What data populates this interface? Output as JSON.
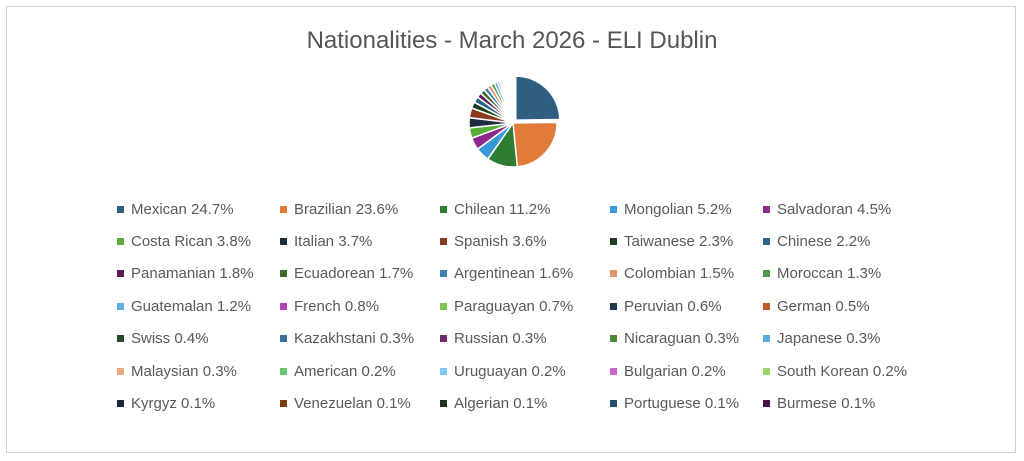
{
  "chart_data": {
    "type": "pie",
    "title": "Nationalities - March 2026 - ELI Dublin",
    "legend_position": "bottom",
    "slices": [
      {
        "label": "Mexican",
        "value": 24.7,
        "display": "24.7%",
        "color": "#2E5E80"
      },
      {
        "label": "Brazilian",
        "value": 23.6,
        "display": "23.6%",
        "color": "#E07B39"
      },
      {
        "label": "Chilean",
        "value": 11.2,
        "display": "11.2%",
        "color": "#2E7D32"
      },
      {
        "label": "Mongolian",
        "value": 5.2,
        "display": "5.2%",
        "color": "#3A9AD9"
      },
      {
        "label": "Salvadoran",
        "value": 4.5,
        "display": "4.5%",
        "color": "#8E2A8E"
      },
      {
        "label": "Costa Rican",
        "value": 3.8,
        "display": "3.8%",
        "color": "#5BAE3A"
      },
      {
        "label": "Italian",
        "value": 3.7,
        "display": "3.7%",
        "color": "#1B2E40"
      },
      {
        "label": "Spanish",
        "value": 3.6,
        "display": "3.6%",
        "color": "#8B3A1E"
      },
      {
        "label": "Taiwanese",
        "value": 2.3,
        "display": "2.3%",
        "color": "#1E3F1E"
      },
      {
        "label": "Chinese",
        "value": 2.2,
        "display": "2.2%",
        "color": "#2F6688"
      },
      {
        "label": "Panamanian",
        "value": 1.8,
        "display": "1.8%",
        "color": "#5A1A5A"
      },
      {
        "label": "Ecuadorean",
        "value": 1.7,
        "display": "1.7%",
        "color": "#3F6B2A"
      },
      {
        "label": "Argentinean",
        "value": 1.6,
        "display": "1.6%",
        "color": "#3C82B0"
      },
      {
        "label": "Colombian",
        "value": 1.5,
        "display": "1.5%",
        "color": "#E0956A"
      },
      {
        "label": "Moroccan",
        "value": 1.3,
        "display": "1.3%",
        "color": "#4C9A4C"
      },
      {
        "label": "Guatemalan",
        "value": 1.2,
        "display": "1.2%",
        "color": "#5AB0E0"
      },
      {
        "label": "French",
        "value": 0.8,
        "display": "0.8%",
        "color": "#B245B2"
      },
      {
        "label": "Paraguayan",
        "value": 0.7,
        "display": "0.7%",
        "color": "#7CC456"
      },
      {
        "label": "Peruvian",
        "value": 0.6,
        "display": "0.6%",
        "color": "#1F3A4A"
      },
      {
        "label": "German",
        "value": 0.5,
        "display": "0.5%",
        "color": "#C05A2A"
      },
      {
        "label": "Swiss",
        "value": 0.4,
        "display": "0.4%",
        "color": "#2A4A2A"
      },
      {
        "label": "Kazakhstani",
        "value": 0.3,
        "display": "0.3%",
        "color": "#3A7098"
      },
      {
        "label": "Russian",
        "value": 0.3,
        "display": "0.3%",
        "color": "#6E2A6E"
      },
      {
        "label": "Nicaraguan",
        "value": 0.3,
        "display": "0.3%",
        "color": "#4A8A3A"
      },
      {
        "label": "Japanese",
        "value": 0.3,
        "display": "0.3%",
        "color": "#5AA8D8"
      },
      {
        "label": "Malaysian",
        "value": 0.3,
        "display": "0.3%",
        "color": "#E8A880"
      },
      {
        "label": "American",
        "value": 0.2,
        "display": "0.2%",
        "color": "#6CC46C"
      },
      {
        "label": "Uruguayan",
        "value": 0.2,
        "display": "0.2%",
        "color": "#7EC8EC"
      },
      {
        "label": "Bulgarian",
        "value": 0.2,
        "display": "0.2%",
        "color": "#CC66CC"
      },
      {
        "label": "South Korean",
        "value": 0.2,
        "display": "0.2%",
        "color": "#9AD46A"
      },
      {
        "label": "Kyrgyz",
        "value": 0.1,
        "display": "0.1%",
        "color": "#1A2A3A"
      },
      {
        "label": "Venezuelan",
        "value": 0.1,
        "display": "0.1%",
        "color": "#7A3A12"
      },
      {
        "label": "Algerian",
        "value": 0.1,
        "display": "0.1%",
        "color": "#1E331E"
      },
      {
        "label": "Portuguese",
        "value": 0.1,
        "display": "0.1%",
        "color": "#24506E"
      },
      {
        "label": "Burmese",
        "value": 0.1,
        "display": "0.1%",
        "color": "#4A1448"
      }
    ]
  }
}
